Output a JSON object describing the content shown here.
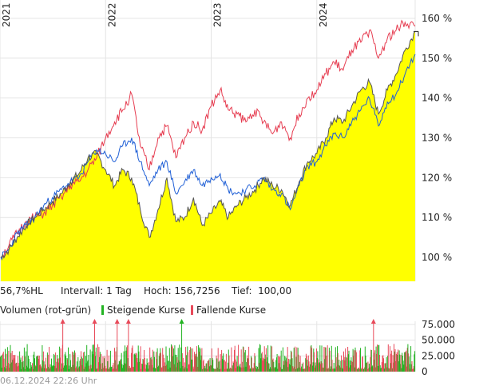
{
  "colors": {
    "area_fill": "#ffff00",
    "grid": "#e4e4e4",
    "series_dark": "#555555",
    "series_blue": "#1f5fd6",
    "series_red": "#e63c50",
    "volume_up": "#22b322",
    "volume_down": "#e84a5a",
    "marker_current": "#222222"
  },
  "info_bar": {
    "hl": "56,7%HL",
    "interval": "Intervall: 1 Tag",
    "high": "Hoch: 156,7256",
    "low": "Tief:  100,00"
  },
  "volume_legend": {
    "title": "Volumen (rot-grün)",
    "rising": "Steigende Kurse",
    "falling": "Fallende Kurse"
  },
  "footer": {
    "timestamp": "06.12.2024 22:26 Uhr"
  },
  "chart_data": [
    {
      "type": "area",
      "y_scale": "percent",
      "ylim": [
        94,
        163
      ],
      "x_range": [
        "2021-01-01",
        "2024-12-06"
      ],
      "x_tick_labels": [
        "2021",
        "2022",
        "2023",
        "2024"
      ],
      "x_tick_dates": [
        "2021-01-01",
        "2022-01-01",
        "2023-01-01",
        "2024-01-01"
      ],
      "y_ticks": [
        100,
        110,
        120,
        130,
        140,
        150,
        160
      ],
      "y_tick_labels": [
        "100 %",
        "110 %",
        "120 %",
        "130 %",
        "140 %",
        "150 %",
        "160 %"
      ],
      "grid": true,
      "series": [
        {
          "role": "main",
          "color": "#555555",
          "fill": "#ffff00",
          "points": [
            [
              "2021-01-04",
              100
            ],
            [
              "2021-02-01",
              102
            ],
            [
              "2021-03-01",
              105
            ],
            [
              "2021-04-01",
              108
            ],
            [
              "2021-05-01",
              110
            ],
            [
              "2021-06-01",
              112
            ],
            [
              "2021-07-01",
              114
            ],
            [
              "2021-08-01",
              116
            ],
            [
              "2021-09-01",
              119
            ],
            [
              "2021-10-01",
              121
            ],
            [
              "2021-11-01",
              125
            ],
            [
              "2021-12-01",
              126
            ],
            [
              "2022-01-01",
              122
            ],
            [
              "2022-02-01",
              118
            ],
            [
              "2022-03-01",
              122
            ],
            [
              "2022-04-01",
              120
            ],
            [
              "2022-05-01",
              112
            ],
            [
              "2022-06-01",
              105
            ],
            [
              "2022-07-01",
              112
            ],
            [
              "2022-08-01",
              120
            ],
            [
              "2022-09-01",
              109
            ],
            [
              "2022-10-01",
              110
            ],
            [
              "2022-11-01",
              115
            ],
            [
              "2022-12-01",
              108
            ],
            [
              "2023-01-01",
              111
            ],
            [
              "2023-02-01",
              114
            ],
            [
              "2023-03-01",
              110
            ],
            [
              "2023-04-01",
              113
            ],
            [
              "2023-05-01",
              115
            ],
            [
              "2023-06-01",
              117
            ],
            [
              "2023-07-01",
              120
            ],
            [
              "2023-08-01",
              118
            ],
            [
              "2023-09-01",
              117
            ],
            [
              "2023-10-01",
              113
            ],
            [
              "2023-11-01",
              119
            ],
            [
              "2023-12-01",
              124
            ],
            [
              "2024-01-01",
              126
            ],
            [
              "2024-02-01",
              130
            ],
            [
              "2024-03-01",
              135
            ],
            [
              "2024-04-01",
              134
            ],
            [
              "2024-05-01",
              138
            ],
            [
              "2024-06-01",
              142
            ],
            [
              "2024-07-01",
              144
            ],
            [
              "2024-08-01",
              136
            ],
            [
              "2024-09-01",
              142
            ],
            [
              "2024-10-01",
              146
            ],
            [
              "2024-11-01",
              152
            ],
            [
              "2024-12-06",
              156.7
            ]
          ]
        },
        {
          "role": "comparison",
          "color": "#1f5fd6",
          "points": [
            [
              "2021-01-04",
              100
            ],
            [
              "2021-02-01",
              102
            ],
            [
              "2021-03-01",
              106
            ],
            [
              "2021-04-01",
              108
            ],
            [
              "2021-05-01",
              110
            ],
            [
              "2021-06-01",
              113
            ],
            [
              "2021-07-01",
              115
            ],
            [
              "2021-08-01",
              117
            ],
            [
              "2021-09-01",
              119
            ],
            [
              "2021-10-01",
              120
            ],
            [
              "2021-11-01",
              124
            ],
            [
              "2021-12-01",
              127
            ],
            [
              "2022-01-01",
              126
            ],
            [
              "2022-02-01",
              124
            ],
            [
              "2022-03-01",
              128
            ],
            [
              "2022-04-01",
              130
            ],
            [
              "2022-05-01",
              124
            ],
            [
              "2022-06-01",
              118
            ],
            [
              "2022-07-01",
              122
            ],
            [
              "2022-08-01",
              124
            ],
            [
              "2022-09-01",
              116
            ],
            [
              "2022-10-01",
              119
            ],
            [
              "2022-11-01",
              122
            ],
            [
              "2022-12-01",
              118
            ],
            [
              "2023-01-01",
              120
            ],
            [
              "2023-02-01",
              121
            ],
            [
              "2023-03-01",
              117
            ],
            [
              "2023-04-01",
              116
            ],
            [
              "2023-05-01",
              117
            ],
            [
              "2023-06-01",
              118
            ],
            [
              "2023-07-01",
              120
            ],
            [
              "2023-08-01",
              117
            ],
            [
              "2023-09-01",
              116
            ],
            [
              "2023-10-01",
              112
            ],
            [
              "2023-11-01",
              118
            ],
            [
              "2023-12-01",
              123
            ],
            [
              "2024-01-01",
              124
            ],
            [
              "2024-02-01",
              128
            ],
            [
              "2024-03-01",
              131
            ],
            [
              "2024-04-01",
              130
            ],
            [
              "2024-05-01",
              134
            ],
            [
              "2024-06-01",
              137
            ],
            [
              "2024-07-01",
              140
            ],
            [
              "2024-08-01",
              133
            ],
            [
              "2024-09-01",
              139
            ],
            [
              "2024-10-01",
              141
            ],
            [
              "2024-11-01",
              146
            ],
            [
              "2024-12-06",
              151
            ]
          ]
        },
        {
          "role": "comparison",
          "color": "#e63c50",
          "points": [
            [
              "2021-01-04",
              100
            ],
            [
              "2021-02-01",
              103
            ],
            [
              "2021-03-01",
              106
            ],
            [
              "2021-04-01",
              109
            ],
            [
              "2021-05-01",
              110
            ],
            [
              "2021-06-01",
              111
            ],
            [
              "2021-07-01",
              113
            ],
            [
              "2021-08-01",
              115
            ],
            [
              "2021-09-01",
              118
            ],
            [
              "2021-10-01",
              119
            ],
            [
              "2021-11-01",
              122
            ],
            [
              "2021-12-01",
              125
            ],
            [
              "2022-01-01",
              130
            ],
            [
              "2022-02-01",
              134
            ],
            [
              "2022-03-01",
              137
            ],
            [
              "2022-04-01",
              141
            ],
            [
              "2022-05-01",
              128
            ],
            [
              "2022-06-01",
              122
            ],
            [
              "2022-07-01",
              130
            ],
            [
              "2022-08-01",
              133
            ],
            [
              "2022-09-01",
              125
            ],
            [
              "2022-10-01",
              130
            ],
            [
              "2022-11-01",
              134
            ],
            [
              "2022-12-01",
              132
            ],
            [
              "2023-01-01",
              138
            ],
            [
              "2023-02-01",
              142
            ],
            [
              "2023-03-01",
              137
            ],
            [
              "2023-04-01",
              136
            ],
            [
              "2023-05-01",
              134
            ],
            [
              "2023-06-01",
              137
            ],
            [
              "2023-07-01",
              134
            ],
            [
              "2023-08-01",
              131
            ],
            [
              "2023-09-01",
              134
            ],
            [
              "2023-10-01",
              130
            ],
            [
              "2023-11-01",
              136
            ],
            [
              "2023-12-01",
              140
            ],
            [
              "2024-01-01",
              142
            ],
            [
              "2024-02-01",
              146
            ],
            [
              "2024-03-01",
              149
            ],
            [
              "2024-04-01",
              147
            ],
            [
              "2024-05-01",
              152
            ],
            [
              "2024-06-01",
              154
            ],
            [
              "2024-07-01",
              157
            ],
            [
              "2024-08-01",
              150
            ],
            [
              "2024-09-01",
              155
            ],
            [
              "2024-10-01",
              157
            ],
            [
              "2024-11-01",
              159
            ],
            [
              "2024-12-06",
              158
            ]
          ]
        }
      ]
    },
    {
      "type": "bar",
      "ylim": [
        0,
        80000
      ],
      "y_ticks": [
        0,
        25000,
        50000,
        75000
      ],
      "y_tick_labels": [
        "0",
        "25.000",
        "50.000",
        "75.000"
      ],
      "grid": true,
      "spike_markers": [
        {
          "date": "2021-08-06",
          "direction": "down",
          "value": 62000
        },
        {
          "date": "2021-11-24",
          "direction": "down",
          "value": 62000
        },
        {
          "date": "2022-02-10",
          "direction": "down",
          "value": 62000
        },
        {
          "date": "2022-03-21",
          "direction": "down",
          "value": 62000
        },
        {
          "date": "2022-09-21",
          "direction": "up",
          "value": 62000
        },
        {
          "date": "2024-07-15",
          "direction": "down",
          "value": 62000
        }
      ]
    }
  ]
}
